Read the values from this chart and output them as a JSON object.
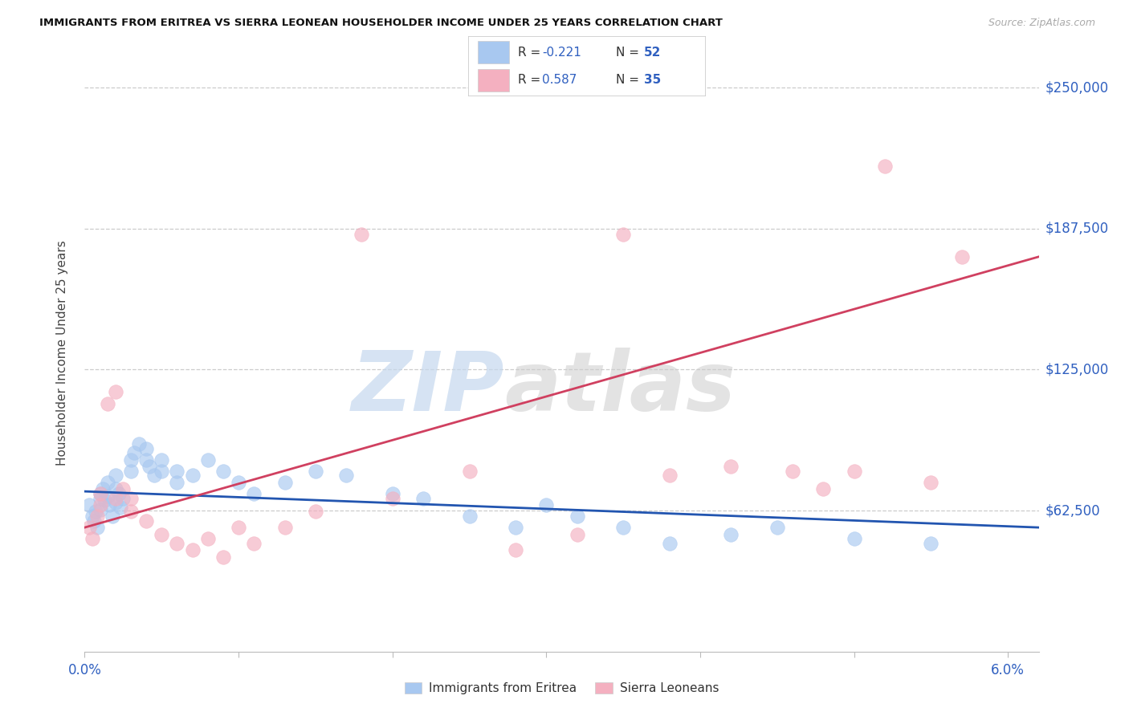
{
  "title": "IMMIGRANTS FROM ERITREA VS SIERRA LEONEAN HOUSEHOLDER INCOME UNDER 25 YEARS CORRELATION CHART",
  "source": "Source: ZipAtlas.com",
  "ylabel": "Householder Income Under 25 years",
  "xmin": 0.0,
  "xmax": 0.062,
  "ymin": 0,
  "ymax": 265000,
  "yticks": [
    0,
    62500,
    125000,
    187500,
    250000
  ],
  "ytick_labels": [
    "",
    "$62,500",
    "$125,000",
    "$187,500",
    "$250,000"
  ],
  "legend_label1": "Immigrants from Eritrea",
  "legend_label2": "Sierra Leoneans",
  "r1": -0.221,
  "n1": 52,
  "r2": 0.587,
  "n2": 35,
  "color_blue_fill": "#A8C8F0",
  "color_pink_fill": "#F4B0C0",
  "color_line_blue": "#2255B0",
  "color_line_pink": "#D04060",
  "color_legend_text": "#3060C0",
  "color_axis_blue": "#3060C0",
  "blue_line_y0": 71000,
  "blue_line_y1": 55000,
  "pink_line_y0": 55000,
  "pink_line_y1": 175000,
  "blue_x": [
    0.0003,
    0.0005,
    0.0006,
    0.0007,
    0.0008,
    0.001,
    0.001,
    0.001,
    0.0012,
    0.0013,
    0.0015,
    0.0015,
    0.0016,
    0.0018,
    0.002,
    0.002,
    0.002,
    0.0022,
    0.0023,
    0.0025,
    0.003,
    0.003,
    0.0032,
    0.0035,
    0.004,
    0.004,
    0.0042,
    0.0045,
    0.005,
    0.005,
    0.006,
    0.006,
    0.007,
    0.008,
    0.009,
    0.01,
    0.011,
    0.013,
    0.015,
    0.017,
    0.02,
    0.022,
    0.025,
    0.028,
    0.03,
    0.032,
    0.035,
    0.038,
    0.042,
    0.045,
    0.05,
    0.055
  ],
  "blue_y": [
    65000,
    60000,
    58000,
    62000,
    55000,
    70000,
    68000,
    63000,
    72000,
    67000,
    75000,
    69000,
    65000,
    60000,
    78000,
    72000,
    66000,
    70000,
    64000,
    68000,
    85000,
    80000,
    88000,
    92000,
    90000,
    85000,
    82000,
    78000,
    85000,
    80000,
    80000,
    75000,
    78000,
    85000,
    80000,
    75000,
    70000,
    75000,
    80000,
    78000,
    70000,
    68000,
    60000,
    55000,
    65000,
    60000,
    55000,
    48000,
    52000,
    55000,
    50000,
    48000
  ],
  "pink_x": [
    0.0003,
    0.0005,
    0.0008,
    0.001,
    0.001,
    0.0015,
    0.002,
    0.002,
    0.0025,
    0.003,
    0.003,
    0.004,
    0.005,
    0.006,
    0.007,
    0.008,
    0.009,
    0.01,
    0.011,
    0.013,
    0.015,
    0.018,
    0.02,
    0.025,
    0.028,
    0.032,
    0.035,
    0.038,
    0.042,
    0.046,
    0.048,
    0.05,
    0.052,
    0.055,
    0.057
  ],
  "pink_y": [
    55000,
    50000,
    60000,
    65000,
    70000,
    110000,
    115000,
    68000,
    72000,
    68000,
    62000,
    58000,
    52000,
    48000,
    45000,
    50000,
    42000,
    55000,
    48000,
    55000,
    62000,
    185000,
    68000,
    80000,
    45000,
    52000,
    185000,
    78000,
    82000,
    80000,
    72000,
    80000,
    215000,
    75000,
    175000
  ]
}
